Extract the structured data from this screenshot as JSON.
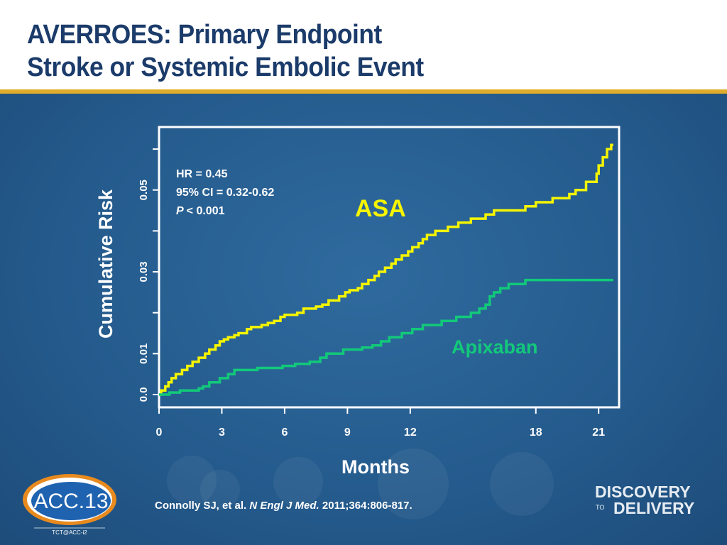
{
  "slide": {
    "title_line1": "AVERROES: Primary Endpoint",
    "title_line2": "Stroke or Systemic Embolic Event",
    "citation_authors": "Connolly SJ, et al.",
    "citation_journal": "N Engl J Med.",
    "citation_ref": "2011;364:806-817.",
    "logo_left_text": "ACC.13",
    "logo_left_sub": "TCT@ACC-i2",
    "logo_right_line1": "DISCOVERY",
    "logo_right_to": "TO",
    "logo_right_line2": "DELIVERY"
  },
  "colors": {
    "title": "#1b3b6a",
    "accent_rule": "#e0ac2b",
    "background": "#245a8c",
    "asa": "#f5f500",
    "apixaban": "#12c97a",
    "axis": "#ffffff"
  },
  "chart_data": {
    "type": "line",
    "title": "",
    "xlabel": "Months",
    "ylabel": "Cumulative Risk",
    "xlim": [
      0,
      21.7
    ],
    "ylim": [
      0,
      0.064
    ],
    "x_ticks": [
      0,
      3,
      6,
      9,
      12,
      18,
      21
    ],
    "y_ticks": [
      0,
      0.01,
      0.02,
      0.03,
      0.04,
      0.05,
      0.06
    ],
    "y_tick_labels": [
      "0.0",
      "0.01",
      "",
      "0.03",
      "",
      "0.05",
      ""
    ],
    "grid": false,
    "legend": "inline labels",
    "annotation": {
      "hr": "HR = 0.45",
      "ci": "95% CI = 0.32-0.62",
      "p_label": "P",
      "p_value": "< 0.001"
    },
    "series": [
      {
        "name": "ASA",
        "step": true,
        "points": [
          [
            0,
            0
          ],
          [
            0.1,
            0.001
          ],
          [
            0.3,
            0.002
          ],
          [
            0.45,
            0.003
          ],
          [
            0.6,
            0.004
          ],
          [
            0.8,
            0.005
          ],
          [
            1.1,
            0.006
          ],
          [
            1.35,
            0.007
          ],
          [
            1.6,
            0.008
          ],
          [
            1.9,
            0.009
          ],
          [
            2.2,
            0.01
          ],
          [
            2.4,
            0.011
          ],
          [
            2.7,
            0.012
          ],
          [
            2.9,
            0.013
          ],
          [
            3.1,
            0.0135
          ],
          [
            3.3,
            0.014
          ],
          [
            3.6,
            0.0145
          ],
          [
            3.8,
            0.015
          ],
          [
            4.2,
            0.016
          ],
          [
            4.4,
            0.0165
          ],
          [
            4.9,
            0.017
          ],
          [
            5.2,
            0.0175
          ],
          [
            5.5,
            0.018
          ],
          [
            5.8,
            0.019
          ],
          [
            6.0,
            0.0195
          ],
          [
            6.6,
            0.02
          ],
          [
            6.9,
            0.021
          ],
          [
            7.5,
            0.0215
          ],
          [
            7.8,
            0.022
          ],
          [
            8.1,
            0.023
          ],
          [
            8.6,
            0.024
          ],
          [
            8.9,
            0.025
          ],
          [
            9.1,
            0.0255
          ],
          [
            9.5,
            0.026
          ],
          [
            9.7,
            0.027
          ],
          [
            10.0,
            0.028
          ],
          [
            10.3,
            0.029
          ],
          [
            10.5,
            0.03
          ],
          [
            10.8,
            0.031
          ],
          [
            11.1,
            0.032
          ],
          [
            11.3,
            0.033
          ],
          [
            11.6,
            0.034
          ],
          [
            11.9,
            0.035
          ],
          [
            12.1,
            0.036
          ],
          [
            12.4,
            0.037
          ],
          [
            12.6,
            0.038
          ],
          [
            12.8,
            0.039
          ],
          [
            13.2,
            0.04
          ],
          [
            13.8,
            0.041
          ],
          [
            14.3,
            0.042
          ],
          [
            14.9,
            0.043
          ],
          [
            15.6,
            0.044
          ],
          [
            16.0,
            0.045
          ],
          [
            17.5,
            0.046
          ],
          [
            18.0,
            0.047
          ],
          [
            18.8,
            0.048
          ],
          [
            19.6,
            0.049
          ],
          [
            19.9,
            0.05
          ],
          [
            20.4,
            0.052
          ],
          [
            20.9,
            0.054
          ],
          [
            21.0,
            0.056
          ],
          [
            21.2,
            0.058
          ],
          [
            21.4,
            0.06
          ],
          [
            21.6,
            0.061
          ],
          [
            21.7,
            0.061
          ]
        ]
      },
      {
        "name": "Apixaban",
        "step": true,
        "points": [
          [
            0,
            0
          ],
          [
            0.5,
            0.0005
          ],
          [
            1.0,
            0.001
          ],
          [
            1.9,
            0.0015
          ],
          [
            2.1,
            0.002
          ],
          [
            2.4,
            0.003
          ],
          [
            2.9,
            0.004
          ],
          [
            3.3,
            0.005
          ],
          [
            3.6,
            0.006
          ],
          [
            4.7,
            0.0065
          ],
          [
            5.9,
            0.007
          ],
          [
            6.5,
            0.0075
          ],
          [
            7.2,
            0.008
          ],
          [
            7.7,
            0.009
          ],
          [
            8.0,
            0.01
          ],
          [
            8.8,
            0.011
          ],
          [
            9.7,
            0.0115
          ],
          [
            10.2,
            0.012
          ],
          [
            10.6,
            0.013
          ],
          [
            11.0,
            0.014
          ],
          [
            11.6,
            0.015
          ],
          [
            12.1,
            0.016
          ],
          [
            12.6,
            0.017
          ],
          [
            13.5,
            0.018
          ],
          [
            14.2,
            0.019
          ],
          [
            14.9,
            0.02
          ],
          [
            15.3,
            0.021
          ],
          [
            15.6,
            0.022
          ],
          [
            15.8,
            0.024
          ],
          [
            16.0,
            0.025
          ],
          [
            16.3,
            0.026
          ],
          [
            16.7,
            0.027
          ],
          [
            17.5,
            0.028
          ],
          [
            21.0,
            0.028
          ],
          [
            21.7,
            0.028
          ]
        ]
      }
    ],
    "series_labels": {
      "asa": "ASA",
      "apixaban": "Apixaban"
    }
  }
}
